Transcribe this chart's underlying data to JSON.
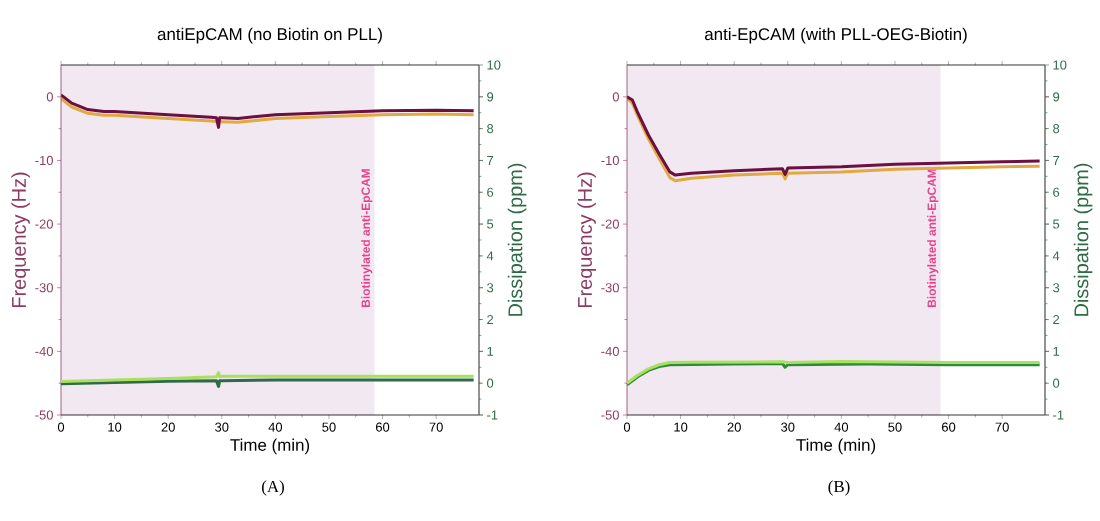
{
  "chart_data": [
    {
      "type": "line",
      "title": "antiEpCAM (no Biotin on PLL)",
      "xlabel": "Time (min)",
      "ylabel": "Frequency (Hz)",
      "y2label": "Dissipation (ppm)",
      "xlim": [
        0,
        78
      ],
      "xticks": [
        0,
        10,
        20,
        30,
        40,
        50,
        60,
        70
      ],
      "ylim": [
        -50,
        5
      ],
      "yticks": [
        -50,
        -40,
        -30,
        -20,
        -10,
        0
      ],
      "y2lim": [
        -1,
        10
      ],
      "y2ticks": [
        -1,
        0,
        1,
        2,
        3,
        4,
        5,
        6,
        7,
        8,
        9,
        10
      ],
      "bands": [
        {
          "axis": "x",
          "from": 0,
          "to": 58.5,
          "label": "Biotinylated anti-EpCAM",
          "color": "#f2e8f2"
        }
      ],
      "annotations": [
        "(A)"
      ],
      "series": [
        {
          "color": "#e0aa40",
          "x": [
            0,
            2,
            5,
            8,
            10,
            20,
            28,
            29,
            30,
            33,
            40,
            50,
            60,
            70,
            77
          ],
          "values": [
            -0.3,
            -1.6,
            -2.6,
            -2.9,
            -2.9,
            -3.4,
            -3.8,
            -3.9,
            -3.9,
            -4.0,
            -3.4,
            -3.1,
            -2.8,
            -2.7,
            -2.8
          ]
        },
        {
          "color": "#6b1040",
          "x": [
            0,
            2,
            5,
            8,
            10,
            20,
            28,
            29,
            29.4,
            29.6,
            30,
            33,
            40,
            50,
            60,
            70,
            77
          ],
          "values": [
            0.3,
            -1.0,
            -2.0,
            -2.3,
            -2.3,
            -2.8,
            -3.2,
            -3.3,
            -4.8,
            -3.3,
            -3.3,
            -3.4,
            -2.8,
            -2.5,
            -2.2,
            -2.1,
            -2.2
          ]
        },
        {
          "color": "#2e6b46",
          "axis": "y2",
          "x": [
            0,
            10,
            20,
            29,
            29.4,
            29.6,
            30,
            40,
            50,
            60,
            70,
            77
          ],
          "values": [
            -0.02,
            0.02,
            0.06,
            0.08,
            -0.1,
            0.08,
            0.08,
            0.1,
            0.1,
            0.1,
            0.1,
            0.1
          ]
        },
        {
          "color": "#a8e060",
          "axis": "y2",
          "x": [
            0,
            10,
            20,
            29,
            29.4,
            29.6,
            30,
            40,
            50,
            60,
            70,
            77
          ],
          "values": [
            0.05,
            0.1,
            0.15,
            0.2,
            0.33,
            0.2,
            0.22,
            0.22,
            0.22,
            0.22,
            0.22,
            0.22
          ]
        }
      ]
    },
    {
      "type": "line",
      "title": "anti-EpCAM (with PLL-OEG-Biotin)",
      "xlabel": "Time (min)",
      "ylabel": "Frequency (Hz)",
      "y2label": "Dissipation (ppm)",
      "xlim": [
        0,
        78
      ],
      "xticks": [
        0,
        10,
        20,
        30,
        40,
        50,
        60,
        70
      ],
      "ylim": [
        -50,
        5
      ],
      "yticks": [
        -50,
        -40,
        -30,
        -20,
        -10,
        0
      ],
      "y2lim": [
        -1,
        10
      ],
      "y2ticks": [
        -1,
        0,
        1,
        2,
        3,
        4,
        5,
        6,
        7,
        8,
        9,
        10
      ],
      "bands": [
        {
          "axis": "x",
          "from": 0,
          "to": 58.5,
          "label": "Biotinylated anti-EpCAM",
          "color": "#f2e8f2"
        }
      ],
      "annotations": [
        "(B)"
      ],
      "series": [
        {
          "color": "#e0aa40",
          "x": [
            0,
            1,
            2,
            4,
            6,
            8,
            9,
            12,
            20,
            29,
            29.5,
            30,
            40,
            50,
            60,
            70,
            77
          ],
          "values": [
            -0.2,
            -1.0,
            -3.0,
            -6.6,
            -9.7,
            -12.7,
            -13.2,
            -12.8,
            -12.3,
            -12.0,
            -12.9,
            -12.0,
            -11.8,
            -11.4,
            -11.2,
            -11.0,
            -10.9
          ]
        },
        {
          "color": "#6b1040",
          "x": [
            0,
            1,
            2,
            4,
            6,
            8,
            9,
            12,
            20,
            29,
            29.5,
            30,
            40,
            50,
            60,
            70,
            77
          ],
          "values": [
            0,
            -0.5,
            -2.5,
            -6.0,
            -9.0,
            -11.8,
            -12.3,
            -12.0,
            -11.6,
            -11.3,
            -12.2,
            -11.2,
            -11.0,
            -10.6,
            -10.4,
            -10.2,
            -10.1
          ]
        },
        {
          "color": "#2e8b3a",
          "axis": "y2",
          "x": [
            0,
            2,
            4,
            6,
            8,
            20,
            29,
            29.5,
            30,
            45,
            60,
            77
          ],
          "values": [
            -0.05,
            0.2,
            0.4,
            0.52,
            0.58,
            0.6,
            0.62,
            0.5,
            0.58,
            0.6,
            0.58,
            0.58
          ]
        },
        {
          "color": "#a8e060",
          "axis": "y2",
          "x": [
            0,
            2,
            4,
            6,
            8,
            12,
            29,
            30,
            40,
            60,
            77
          ],
          "values": [
            0,
            0.25,
            0.45,
            0.58,
            0.65,
            0.66,
            0.67,
            0.65,
            0.68,
            0.65,
            0.65
          ]
        }
      ]
    }
  ]
}
